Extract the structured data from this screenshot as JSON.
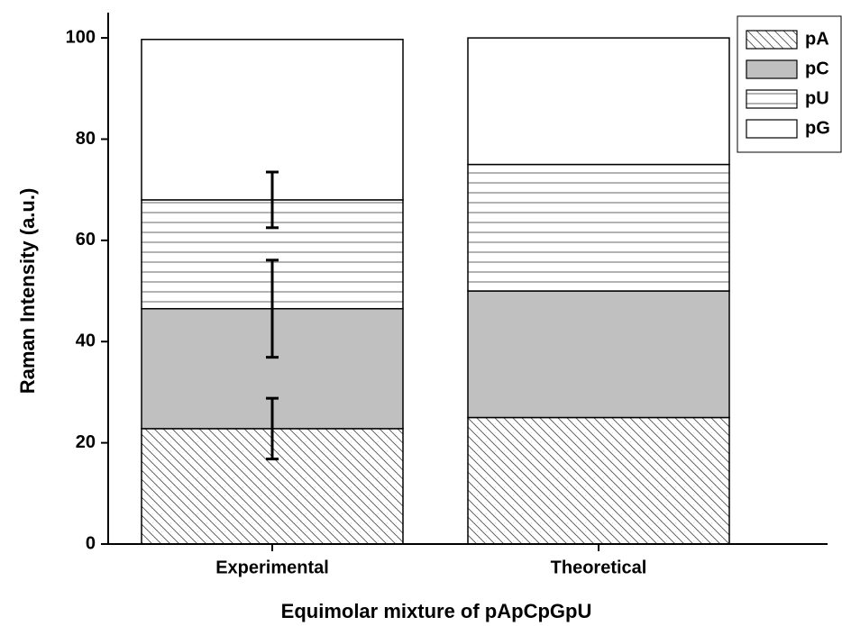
{
  "chart_data": {
    "type": "stacked-bar",
    "xlabel": "Equimolar mixture of pApCpGpU",
    "ylabel": "Raman Intensity (a.u.)",
    "categories": [
      "Experimental",
      "Theoretical"
    ],
    "series": [
      {
        "name": "pA",
        "color": "#ffffff",
        "hatch": "diagonal",
        "values": [
          22.8,
          25
        ],
        "errors": [
          6,
          null
        ]
      },
      {
        "name": "pC",
        "color": "#c0c0c0",
        "hatch": "none",
        "values": [
          23.7,
          25
        ],
        "errors": [
          9.6,
          null
        ]
      },
      {
        "name": "pU",
        "color": "#ffffff",
        "hatch": "horizontal",
        "values": [
          21.5,
          25
        ],
        "errors": [
          5.5,
          null
        ]
      },
      {
        "name": "pG",
        "color": "#ffffff",
        "hatch": "none",
        "values": [
          31.7,
          25
        ],
        "errors": [
          null,
          null
        ]
      }
    ],
    "ylim": [
      0,
      105
    ],
    "yticks": [
      0,
      20,
      40,
      60,
      80,
      100
    ],
    "legend": "upper-right"
  }
}
